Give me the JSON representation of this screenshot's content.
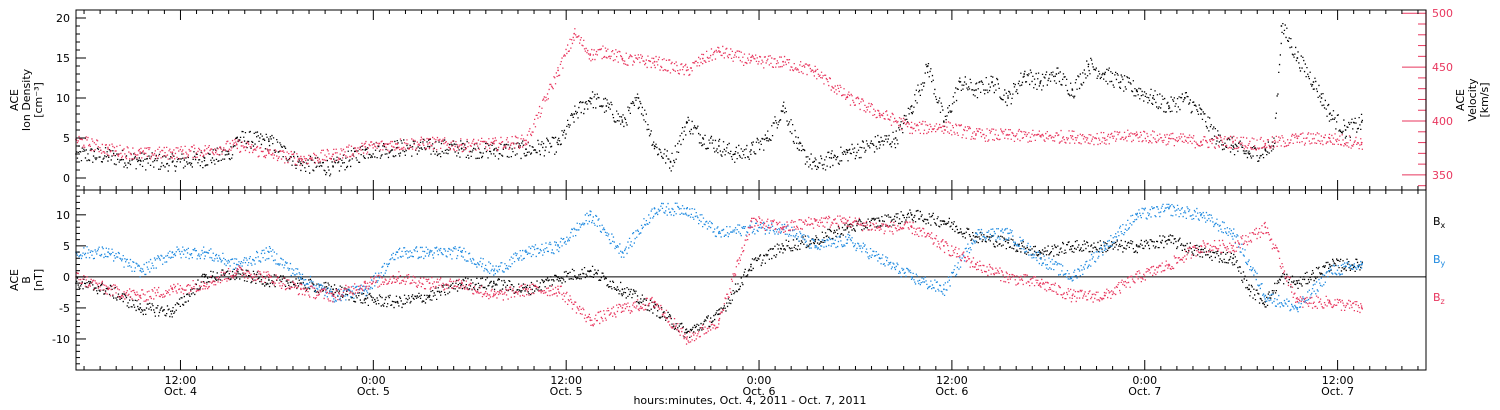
{
  "chart_data": [
    {
      "type": "scatter",
      "panel": "top",
      "left_axis": {
        "label_lines": [
          "ACE",
          "Ion Density",
          "[cm⁻³]"
        ],
        "ylim": [
          -1.5,
          21
        ],
        "ticks": [
          0,
          5,
          10,
          15,
          20
        ],
        "tick_labels": [
          "0",
          "5",
          "10",
          "15",
          "20"
        ]
      },
      "right_axis": {
        "label_lines": [
          "ACE",
          "Velocity",
          "[km/s]"
        ],
        "ylim": [
          336,
          503
        ],
        "ticks": [
          350,
          400,
          450,
          500
        ],
        "tick_labels": [
          "350",
          "400",
          "450",
          "500"
        ],
        "color": "#e8365e"
      },
      "series": [
        {
          "key": "density",
          "color": "#000000",
          "axis": "left",
          "x_hours": [
            0,
            2,
            4,
            6,
            8,
            9.5,
            10,
            12,
            14,
            16,
            18,
            20,
            22,
            24,
            26,
            28,
            30,
            31,
            32,
            33,
            34,
            35,
            36,
            37,
            38,
            39,
            40,
            41,
            42,
            43,
            44,
            45,
            46,
            47,
            48,
            50,
            51,
            52,
            53,
            54,
            55,
            56,
            57,
            58,
            59,
            60,
            61,
            62,
            63,
            64,
            65,
            66,
            67,
            68,
            69,
            70,
            71,
            72,
            73,
            74,
            74.5,
            75,
            76,
            77,
            77.5,
            78,
            79,
            80
          ],
          "y": [
            3,
            2.8,
            2.2,
            2,
            2.5,
            3,
            5,
            4.6,
            1.8,
            1.4,
            3.5,
            3.8,
            3.9,
            3.7,
            3.5,
            3.6,
            4.2,
            8,
            10,
            9,
            7,
            10,
            4,
            2,
            7,
            5,
            4,
            3,
            3.5,
            5,
            9,
            3.5,
            1.5,
            2.5,
            3.2,
            4.5,
            5,
            9,
            14,
            7,
            12,
            11,
            12,
            10,
            13,
            12,
            13,
            11,
            14.2,
            13,
            12,
            11,
            10,
            9,
            10,
            8,
            5,
            4,
            3,
            3.5,
            4,
            19,
            15,
            12,
            10,
            8,
            6,
            7
          ]
        },
        {
          "key": "velocity",
          "color": "#e8365e",
          "axis": "right",
          "x_hours": [
            0,
            2,
            4,
            6,
            8,
            10,
            12,
            14,
            16,
            18,
            20,
            22,
            24,
            26,
            28,
            30,
            31,
            32,
            33,
            34,
            36,
            38,
            39,
            40,
            42,
            44,
            46,
            48,
            50,
            52,
            54,
            56,
            58,
            60,
            62,
            64,
            66,
            68,
            70,
            72,
            74,
            76,
            78,
            80
          ],
          "y": [
            383,
            374,
            370,
            371,
            373,
            378,
            370,
            365,
            369,
            376,
            379,
            380,
            378,
            379,
            382,
            447,
            481,
            462,
            465,
            458,
            455,
            447,
            458,
            465,
            456,
            455,
            446,
            422,
            407,
            394,
            395,
            388,
            387,
            386,
            386,
            384,
            387,
            384,
            381,
            381,
            379,
            384,
            384,
            380
          ]
        }
      ]
    },
    {
      "type": "scatter",
      "panel": "bottom",
      "left_axis": {
        "label_lines": [
          "ACE",
          "B",
          "[nT]"
        ],
        "ylim": [
          -15,
          14
        ],
        "ticks": [
          -10,
          -5,
          0,
          5,
          10
        ],
        "tick_labels": [
          "-10",
          "-5",
          "0",
          "5",
          "10"
        ]
      },
      "zero_line": true,
      "series": [
        {
          "key": "bx",
          "name": "Bx",
          "color": "#000000",
          "x_hours": [
            0,
            2,
            4,
            6,
            8,
            10,
            12,
            14,
            16,
            18,
            20,
            22,
            24,
            26,
            28,
            30,
            32,
            34,
            36,
            38,
            40,
            42,
            44,
            46,
            48,
            50,
            52,
            54,
            56,
            58,
            60,
            62,
            64,
            66,
            68,
            70,
            72,
            73,
            74,
            75,
            76,
            78,
            80
          ],
          "y": [
            -1,
            -2,
            -5,
            -5.5,
            0,
            0.5,
            -0.5,
            -1,
            -2,
            -3.5,
            -4,
            -3,
            -1,
            -1,
            -2,
            0,
            1,
            -2,
            -5,
            -9,
            -6,
            2,
            5,
            6,
            8,
            9,
            10,
            9,
            6.5,
            5.5,
            4,
            5,
            5,
            5,
            6,
            4,
            3,
            -2,
            -4,
            0,
            -1,
            2,
            2
          ]
        },
        {
          "key": "by",
          "name": "By",
          "color": "#1f8ae0",
          "x_hours": [
            0,
            2,
            4,
            6,
            8,
            10,
            12,
            14,
            16,
            18,
            20,
            22,
            24,
            26,
            28,
            30,
            32,
            34,
            36,
            38,
            40,
            42,
            44,
            46,
            48,
            50,
            52,
            54,
            56,
            58,
            60,
            62,
            64,
            66,
            68,
            70,
            72,
            74,
            76,
            78,
            80
          ],
          "y": [
            4,
            4,
            1,
            4,
            4,
            2,
            4,
            0,
            -3,
            -2,
            4,
            4,
            4,
            1,
            4,
            5,
            10,
            4,
            11,
            11,
            7,
            8,
            8,
            5,
            6,
            3,
            0,
            -2,
            7,
            7,
            3,
            0,
            5,
            10,
            11,
            10,
            7,
            -3,
            -5,
            1,
            2
          ]
        },
        {
          "key": "bz",
          "name": "Bz",
          "color": "#e8365e",
          "x_hours": [
            0,
            2,
            4,
            6,
            8,
            10,
            12,
            14,
            16,
            18,
            20,
            22,
            24,
            26,
            28,
            30,
            32,
            34,
            36,
            38,
            40,
            42,
            44,
            46,
            48,
            50,
            52,
            54,
            56,
            58,
            60,
            62,
            64,
            66,
            68,
            70,
            72,
            74,
            76,
            78,
            80
          ],
          "y": [
            0,
            -2,
            -3,
            -2,
            -1,
            1,
            0,
            -2,
            -3,
            -1,
            0,
            -1,
            -1,
            -3,
            -2,
            -2,
            -7,
            -5,
            -4,
            -10,
            -7,
            9,
            8,
            9,
            9,
            8,
            8,
            5,
            2,
            0,
            -1,
            -3,
            -3,
            0,
            2,
            5,
            5,
            8,
            -4,
            -4,
            -5
          ]
        }
      ]
    }
  ],
  "legend": [
    {
      "key": "bx",
      "main": "B",
      "sub": "x",
      "color": "#000000"
    },
    {
      "key": "by",
      "main": "B",
      "sub": "y",
      "color": "#1f8ae0"
    },
    {
      "key": "bz",
      "main": "B",
      "sub": "z",
      "color": "#e8365e"
    }
  ],
  "time_axis": {
    "xlim_hours": [
      0,
      84
    ],
    "ticks": [
      {
        "h": 6.5,
        "line1": "12:00",
        "line2": "Oct. 4"
      },
      {
        "h": 18.5,
        "line1": "0:00",
        "line2": "Oct. 5"
      },
      {
        "h": 30.5,
        "line1": "12:00",
        "line2": "Oct. 5"
      },
      {
        "h": 42.5,
        "line1": "0:00",
        "line2": "Oct. 6"
      },
      {
        "h": 54.5,
        "line1": "12:00",
        "line2": "Oct. 6"
      },
      {
        "h": 66.5,
        "line1": "0:00",
        "line2": "Oct. 7"
      },
      {
        "h": 78.5,
        "line1": "12:00",
        "line2": "Oct. 7"
      }
    ],
    "title": "hours:minutes, Oct.  4, 2011 - Oct.  7, 2011"
  }
}
